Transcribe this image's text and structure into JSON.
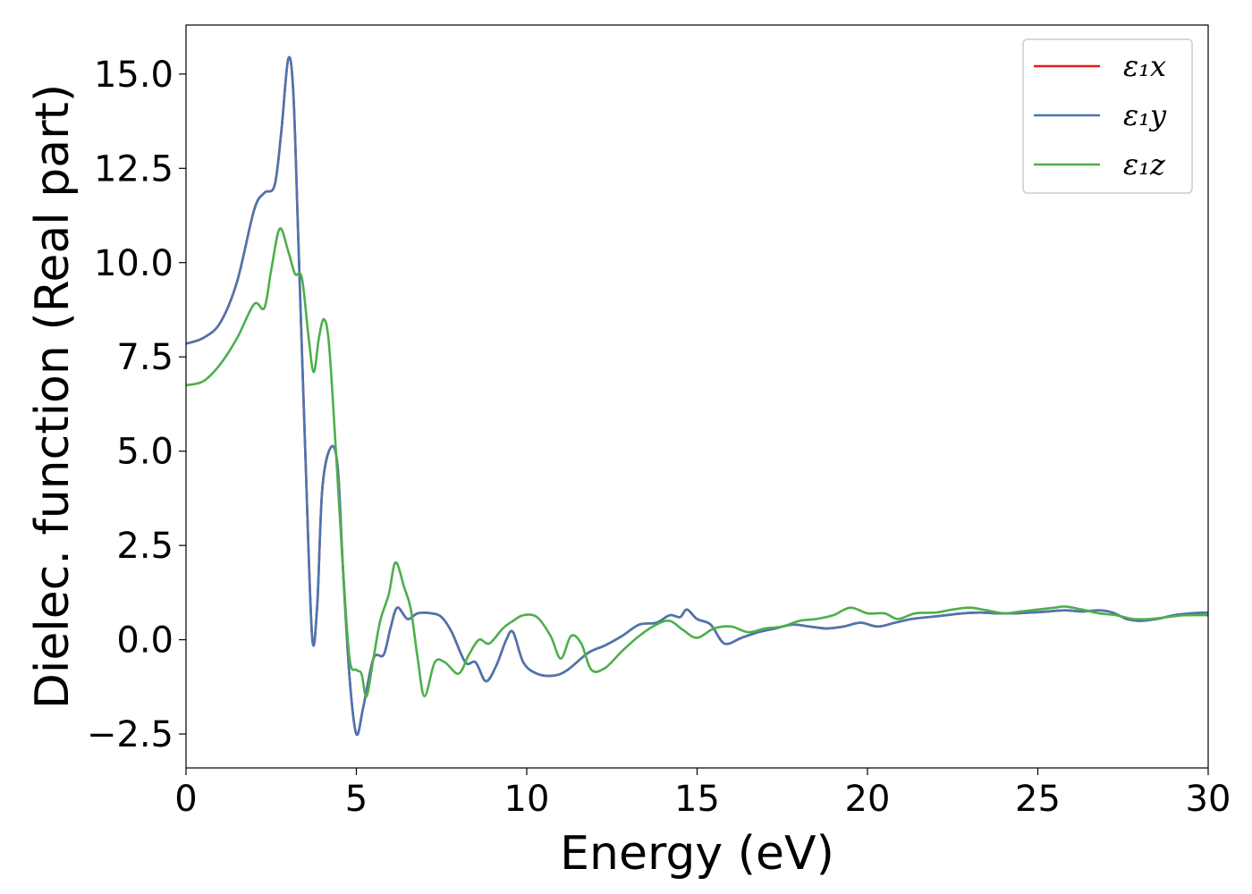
{
  "chart_data": {
    "type": "line",
    "title": "",
    "xlabel": "Energy (eV)",
    "ylabel": "Dielec. function (Real part)",
    "xlim": [
      0,
      30
    ],
    "ylim": [
      -3.4,
      16.3
    ],
    "xticks": [
      0,
      5,
      10,
      15,
      20,
      25,
      30
    ],
    "xtick_labels": [
      "0",
      "5",
      "10",
      "15",
      "20",
      "25",
      "30"
    ],
    "yticks": [
      -2.5,
      0.0,
      2.5,
      5.0,
      7.5,
      10.0,
      12.5,
      15.0
    ],
    "ytick_labels": [
      "−2.5",
      "0.0",
      "2.5",
      "5.0",
      "7.5",
      "10.0",
      "12.5",
      "15.0"
    ],
    "grid": false,
    "legend_position": "top-right",
    "series": [
      {
        "name": "ε₁x",
        "color": "#e41a1c",
        "points": [
          [
            0,
            7.85
          ],
          [
            0.5,
            8.0
          ],
          [
            1.0,
            8.4
          ],
          [
            1.5,
            9.5
          ],
          [
            2.0,
            11.4
          ],
          [
            2.3,
            11.85
          ],
          [
            2.6,
            12.05
          ],
          [
            2.8,
            13.5
          ],
          [
            3.0,
            15.4
          ],
          [
            3.15,
            14.5
          ],
          [
            3.3,
            10.5
          ],
          [
            3.5,
            5.0
          ],
          [
            3.7,
            0.1
          ],
          [
            3.85,
            0.9
          ],
          [
            4.0,
            4.0
          ],
          [
            4.25,
            5.1
          ],
          [
            4.45,
            4.6
          ],
          [
            4.6,
            2.0
          ],
          [
            4.8,
            -1.0
          ],
          [
            5.0,
            -2.5
          ],
          [
            5.2,
            -1.8
          ],
          [
            5.5,
            -0.5
          ],
          [
            5.8,
            -0.4
          ],
          [
            6.0,
            0.3
          ],
          [
            6.2,
            0.85
          ],
          [
            6.5,
            0.55
          ],
          [
            6.8,
            0.7
          ],
          [
            7.2,
            0.7
          ],
          [
            7.5,
            0.6
          ],
          [
            7.8,
            0.2
          ],
          [
            8.2,
            -0.6
          ],
          [
            8.5,
            -0.6
          ],
          [
            8.8,
            -1.1
          ],
          [
            9.1,
            -0.7
          ],
          [
            9.4,
            0.0
          ],
          [
            9.6,
            0.2
          ],
          [
            9.9,
            -0.6
          ],
          [
            10.3,
            -0.9
          ],
          [
            10.8,
            -0.95
          ],
          [
            11.2,
            -0.8
          ],
          [
            11.8,
            -0.35
          ],
          [
            12.3,
            -0.15
          ],
          [
            12.8,
            0.1
          ],
          [
            13.3,
            0.4
          ],
          [
            13.8,
            0.45
          ],
          [
            14.2,
            0.65
          ],
          [
            14.5,
            0.6
          ],
          [
            14.7,
            0.8
          ],
          [
            15.0,
            0.55
          ],
          [
            15.4,
            0.4
          ],
          [
            15.8,
            -0.1
          ],
          [
            16.3,
            0.05
          ],
          [
            16.8,
            0.2
          ],
          [
            17.3,
            0.3
          ],
          [
            17.8,
            0.4
          ],
          [
            18.3,
            0.35
          ],
          [
            18.8,
            0.3
          ],
          [
            19.3,
            0.35
          ],
          [
            19.8,
            0.45
          ],
          [
            20.3,
            0.35
          ],
          [
            20.8,
            0.45
          ],
          [
            21.3,
            0.55
          ],
          [
            21.8,
            0.6
          ],
          [
            22.3,
            0.65
          ],
          [
            22.8,
            0.7
          ],
          [
            23.3,
            0.72
          ],
          [
            23.8,
            0.7
          ],
          [
            24.3,
            0.7
          ],
          [
            24.8,
            0.72
          ],
          [
            25.3,
            0.75
          ],
          [
            25.8,
            0.78
          ],
          [
            26.3,
            0.75
          ],
          [
            26.8,
            0.78
          ],
          [
            27.2,
            0.72
          ],
          [
            27.6,
            0.55
          ],
          [
            28.0,
            0.5
          ],
          [
            28.5,
            0.55
          ],
          [
            29.0,
            0.65
          ],
          [
            29.5,
            0.7
          ],
          [
            30.0,
            0.72
          ]
        ]
      },
      {
        "name": "ε₁y",
        "color": "#4a76b0",
        "points": [
          [
            0,
            7.85
          ],
          [
            0.5,
            8.0
          ],
          [
            1.0,
            8.4
          ],
          [
            1.5,
            9.5
          ],
          [
            2.0,
            11.4
          ],
          [
            2.3,
            11.85
          ],
          [
            2.6,
            12.05
          ],
          [
            2.8,
            13.5
          ],
          [
            3.0,
            15.4
          ],
          [
            3.15,
            14.5
          ],
          [
            3.3,
            10.5
          ],
          [
            3.5,
            5.0
          ],
          [
            3.7,
            0.1
          ],
          [
            3.85,
            0.9
          ],
          [
            4.0,
            4.0
          ],
          [
            4.25,
            5.1
          ],
          [
            4.45,
            4.6
          ],
          [
            4.6,
            2.0
          ],
          [
            4.8,
            -1.0
          ],
          [
            5.0,
            -2.5
          ],
          [
            5.2,
            -1.8
          ],
          [
            5.5,
            -0.5
          ],
          [
            5.8,
            -0.4
          ],
          [
            6.0,
            0.3
          ],
          [
            6.2,
            0.85
          ],
          [
            6.5,
            0.55
          ],
          [
            6.8,
            0.7
          ],
          [
            7.2,
            0.7
          ],
          [
            7.5,
            0.6
          ],
          [
            7.8,
            0.2
          ],
          [
            8.2,
            -0.6
          ],
          [
            8.5,
            -0.6
          ],
          [
            8.8,
            -1.1
          ],
          [
            9.1,
            -0.7
          ],
          [
            9.4,
            0.0
          ],
          [
            9.6,
            0.2
          ],
          [
            9.9,
            -0.6
          ],
          [
            10.3,
            -0.9
          ],
          [
            10.8,
            -0.95
          ],
          [
            11.2,
            -0.8
          ],
          [
            11.8,
            -0.35
          ],
          [
            12.3,
            -0.15
          ],
          [
            12.8,
            0.1
          ],
          [
            13.3,
            0.4
          ],
          [
            13.8,
            0.45
          ],
          [
            14.2,
            0.65
          ],
          [
            14.5,
            0.6
          ],
          [
            14.7,
            0.8
          ],
          [
            15.0,
            0.55
          ],
          [
            15.4,
            0.4
          ],
          [
            15.8,
            -0.1
          ],
          [
            16.3,
            0.05
          ],
          [
            16.8,
            0.2
          ],
          [
            17.3,
            0.3
          ],
          [
            17.8,
            0.4
          ],
          [
            18.3,
            0.35
          ],
          [
            18.8,
            0.3
          ],
          [
            19.3,
            0.35
          ],
          [
            19.8,
            0.45
          ],
          [
            20.3,
            0.35
          ],
          [
            20.8,
            0.45
          ],
          [
            21.3,
            0.55
          ],
          [
            21.8,
            0.6
          ],
          [
            22.3,
            0.65
          ],
          [
            22.8,
            0.7
          ],
          [
            23.3,
            0.72
          ],
          [
            23.8,
            0.7
          ],
          [
            24.3,
            0.7
          ],
          [
            24.8,
            0.72
          ],
          [
            25.3,
            0.75
          ],
          [
            25.8,
            0.78
          ],
          [
            26.3,
            0.75
          ],
          [
            26.8,
            0.78
          ],
          [
            27.2,
            0.72
          ],
          [
            27.6,
            0.55
          ],
          [
            28.0,
            0.5
          ],
          [
            28.5,
            0.55
          ],
          [
            29.0,
            0.65
          ],
          [
            29.5,
            0.7
          ],
          [
            30.0,
            0.72
          ]
        ]
      },
      {
        "name": "ε₁z",
        "color": "#4daf4a",
        "points": [
          [
            0,
            6.75
          ],
          [
            0.5,
            6.85
          ],
          [
            1.0,
            7.3
          ],
          [
            1.5,
            8.0
          ],
          [
            2.0,
            8.9
          ],
          [
            2.3,
            8.8
          ],
          [
            2.5,
            9.8
          ],
          [
            2.75,
            10.9
          ],
          [
            3.0,
            10.3
          ],
          [
            3.2,
            9.7
          ],
          [
            3.4,
            9.6
          ],
          [
            3.6,
            8.0
          ],
          [
            3.75,
            7.1
          ],
          [
            3.9,
            8.0
          ],
          [
            4.05,
            8.5
          ],
          [
            4.2,
            7.8
          ],
          [
            4.4,
            5.0
          ],
          [
            4.6,
            2.0
          ],
          [
            4.8,
            -0.5
          ],
          [
            5.0,
            -0.8
          ],
          [
            5.15,
            -0.9
          ],
          [
            5.3,
            -1.5
          ],
          [
            5.5,
            -0.5
          ],
          [
            5.7,
            0.5
          ],
          [
            5.95,
            1.2
          ],
          [
            6.15,
            2.05
          ],
          [
            6.4,
            1.4
          ],
          [
            6.6,
            0.8
          ],
          [
            6.8,
            -0.5
          ],
          [
            7.0,
            -1.5
          ],
          [
            7.3,
            -0.6
          ],
          [
            7.6,
            -0.6
          ],
          [
            8.0,
            -0.9
          ],
          [
            8.3,
            -0.4
          ],
          [
            8.6,
            0.0
          ],
          [
            8.9,
            -0.1
          ],
          [
            9.3,
            0.3
          ],
          [
            9.6,
            0.5
          ],
          [
            9.9,
            0.65
          ],
          [
            10.3,
            0.6
          ],
          [
            10.7,
            0.1
          ],
          [
            11.0,
            -0.5
          ],
          [
            11.3,
            0.1
          ],
          [
            11.6,
            -0.1
          ],
          [
            11.9,
            -0.8
          ],
          [
            12.3,
            -0.75
          ],
          [
            12.8,
            -0.3
          ],
          [
            13.3,
            0.1
          ],
          [
            13.8,
            0.4
          ],
          [
            14.2,
            0.5
          ],
          [
            14.6,
            0.25
          ],
          [
            15.0,
            0.05
          ],
          [
            15.5,
            0.3
          ],
          [
            16.0,
            0.35
          ],
          [
            16.5,
            0.2
          ],
          [
            17.0,
            0.3
          ],
          [
            17.5,
            0.35
          ],
          [
            18.0,
            0.5
          ],
          [
            18.5,
            0.55
          ],
          [
            19.0,
            0.65
          ],
          [
            19.5,
            0.85
          ],
          [
            20.0,
            0.7
          ],
          [
            20.5,
            0.7
          ],
          [
            20.9,
            0.55
          ],
          [
            21.4,
            0.7
          ],
          [
            22.0,
            0.72
          ],
          [
            22.5,
            0.8
          ],
          [
            23.0,
            0.85
          ],
          [
            23.5,
            0.78
          ],
          [
            24.0,
            0.7
          ],
          [
            24.5,
            0.75
          ],
          [
            25.0,
            0.8
          ],
          [
            25.5,
            0.85
          ],
          [
            25.8,
            0.88
          ],
          [
            26.3,
            0.8
          ],
          [
            26.8,
            0.7
          ],
          [
            27.3,
            0.65
          ],
          [
            27.8,
            0.55
          ],
          [
            28.3,
            0.55
          ],
          [
            28.8,
            0.6
          ],
          [
            29.3,
            0.65
          ],
          [
            30.0,
            0.65
          ]
        ]
      }
    ]
  }
}
